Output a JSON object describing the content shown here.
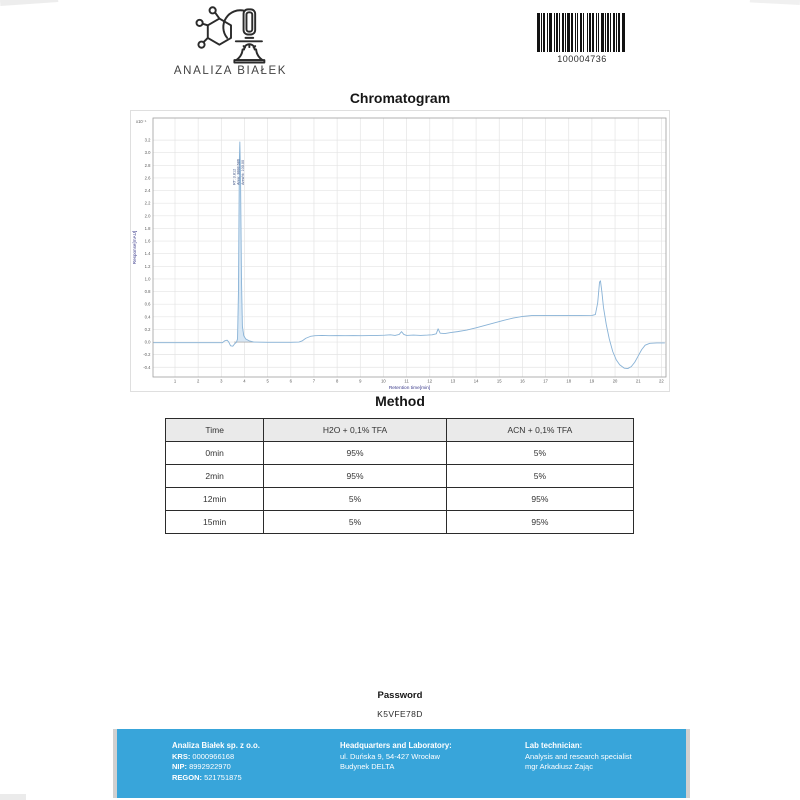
{
  "header": {
    "logo_text": "ANALIZA BIAŁEK",
    "barcode_value": "100004736"
  },
  "chromatogram": {
    "title": "Chromatogram"
  },
  "chart_data": {
    "type": "line",
    "title": "",
    "xlabel": "Retention time[min]",
    "ylabel": "Response[mAU]",
    "y_offset_label": "x10⁻¹",
    "xlim": [
      0.05,
      22.2
    ],
    "ylim": [
      -0.554,
      3.55
    ],
    "xticks": [
      1,
      2,
      3,
      4,
      5,
      6,
      7,
      8,
      9,
      10,
      11,
      12,
      13,
      14,
      15,
      16,
      17,
      18,
      19,
      20,
      21,
      22
    ],
    "yticks": [
      -0.4,
      -0.2,
      0.0,
      0.2,
      0.4,
      0.6,
      0.8,
      1.0,
      1.2,
      1.4,
      1.6,
      1.8,
      2.0,
      2.2,
      2.4,
      2.6,
      2.8,
      3.0,
      3.2
    ],
    "grid": true,
    "legend": "none",
    "line_color": "#88b2d6",
    "peak_fill_color": "#d9e8f5",
    "axis_label_color": "#3c3c8c",
    "annotation": {
      "rt_min": 3.8,
      "lines": [
        "RT: 3.812",
        "Area: 3888.686",
        "Area%: 100.00"
      ]
    },
    "integration_baseline": [
      3.55,
      4.4
    ],
    "peak_fill": [
      [
        3.65,
        0
      ],
      [
        3.7,
        0.05
      ],
      [
        3.74,
        0.8
      ],
      [
        3.78,
        2.9
      ],
      [
        3.8,
        3.17
      ],
      [
        3.83,
        2.6
      ],
      [
        3.87,
        1.0
      ],
      [
        3.91,
        0.25
      ],
      [
        3.97,
        0.1
      ],
      [
        4.05,
        0.05
      ],
      [
        4.2,
        0.02
      ],
      [
        4.4,
        0.0
      ]
    ],
    "series": [
      {
        "name": "response",
        "points": [
          [
            0.05,
            -0.01
          ],
          [
            1.0,
            -0.01
          ],
          [
            2.0,
            -0.01
          ],
          [
            3.05,
            -0.01
          ],
          [
            3.15,
            0.02
          ],
          [
            3.25,
            0.03
          ],
          [
            3.32,
            0.0
          ],
          [
            3.4,
            -0.06
          ],
          [
            3.5,
            -0.065
          ],
          [
            3.58,
            -0.025
          ],
          [
            3.65,
            -0.005
          ],
          [
            3.7,
            0.05
          ],
          [
            3.74,
            0.8
          ],
          [
            3.78,
            2.9
          ],
          [
            3.8,
            3.17
          ],
          [
            3.83,
            2.6
          ],
          [
            3.87,
            1.0
          ],
          [
            3.91,
            0.25
          ],
          [
            3.97,
            0.1
          ],
          [
            4.05,
            0.05
          ],
          [
            4.2,
            0.02
          ],
          [
            4.4,
            0.0
          ],
          [
            5.0,
            -0.005
          ],
          [
            6.0,
            -0.005
          ],
          [
            6.35,
            0.0
          ],
          [
            6.5,
            0.02
          ],
          [
            6.65,
            0.06
          ],
          [
            6.85,
            0.09
          ],
          [
            7.05,
            0.1
          ],
          [
            7.35,
            0.105
          ],
          [
            7.65,
            0.1
          ],
          [
            8.0,
            0.103
          ],
          [
            8.35,
            0.1
          ],
          [
            8.7,
            0.103
          ],
          [
            9.05,
            0.1
          ],
          [
            9.4,
            0.102
          ],
          [
            9.75,
            0.104
          ],
          [
            10.05,
            0.108
          ],
          [
            10.3,
            0.115
          ],
          [
            10.5,
            0.105
          ],
          [
            10.68,
            0.12
          ],
          [
            10.78,
            0.165
          ],
          [
            10.88,
            0.12
          ],
          [
            11.0,
            0.105
          ],
          [
            11.3,
            0.11
          ],
          [
            11.6,
            0.105
          ],
          [
            11.9,
            0.11
          ],
          [
            12.1,
            0.115
          ],
          [
            12.28,
            0.13
          ],
          [
            12.36,
            0.21
          ],
          [
            12.45,
            0.14
          ],
          [
            12.65,
            0.135
          ],
          [
            12.9,
            0.15
          ],
          [
            13.2,
            0.165
          ],
          [
            13.6,
            0.19
          ],
          [
            14.0,
            0.225
          ],
          [
            14.4,
            0.265
          ],
          [
            14.8,
            0.305
          ],
          [
            15.2,
            0.345
          ],
          [
            15.6,
            0.38
          ],
          [
            16.0,
            0.405
          ],
          [
            16.4,
            0.42
          ],
          [
            17.0,
            0.422
          ],
          [
            17.5,
            0.42
          ],
          [
            18.0,
            0.422
          ],
          [
            18.5,
            0.42
          ],
          [
            19.0,
            0.421
          ],
          [
            19.15,
            0.435
          ],
          [
            19.25,
            0.62
          ],
          [
            19.33,
            0.95
          ],
          [
            19.37,
            0.97
          ],
          [
            19.43,
            0.8
          ],
          [
            19.5,
            0.55
          ],
          [
            19.62,
            0.28
          ],
          [
            19.75,
            0.05
          ],
          [
            19.9,
            -0.15
          ],
          [
            20.05,
            -0.28
          ],
          [
            20.2,
            -0.36
          ],
          [
            20.4,
            -0.415
          ],
          [
            20.55,
            -0.42
          ],
          [
            20.7,
            -0.39
          ],
          [
            20.85,
            -0.32
          ],
          [
            21.0,
            -0.22
          ],
          [
            21.15,
            -0.12
          ],
          [
            21.3,
            -0.05
          ],
          [
            21.5,
            -0.02
          ],
          [
            21.8,
            -0.015
          ],
          [
            22.15,
            -0.015
          ]
        ]
      }
    ]
  },
  "method": {
    "title": "Method",
    "table": {
      "headers": [
        "Time",
        "H2O + 0,1% TFA",
        "ACN + 0,1% TFA"
      ],
      "rows": [
        [
          "0min",
          "95%",
          "5%"
        ],
        [
          "2min",
          "95%",
          "5%"
        ],
        [
          "12min",
          "5%",
          "95%"
        ],
        [
          "15min",
          "5%",
          "95%"
        ]
      ]
    }
  },
  "password": {
    "label": "Password",
    "value": "K5VFE78D"
  },
  "footer": {
    "accent_color": "#38a5da",
    "company": {
      "name": "Analiza Białek sp. z o.o.",
      "registry": [
        {
          "label": "KRS:",
          "value": "0000966168"
        },
        {
          "label": "NIP:",
          "value": "8992922970"
        },
        {
          "label": "REGON:",
          "value": "521751875"
        }
      ]
    },
    "headquarters": {
      "title": "Headquarters and Laboratory:",
      "lines": [
        "ul. Duńska 9, 54-427 Wrocław",
        "Budynek DELTA"
      ]
    },
    "technician": {
      "title": "Lab technician:",
      "lines": [
        "Analysis and research specialist",
        "mgr Arkadiusz Zając"
      ]
    }
  }
}
